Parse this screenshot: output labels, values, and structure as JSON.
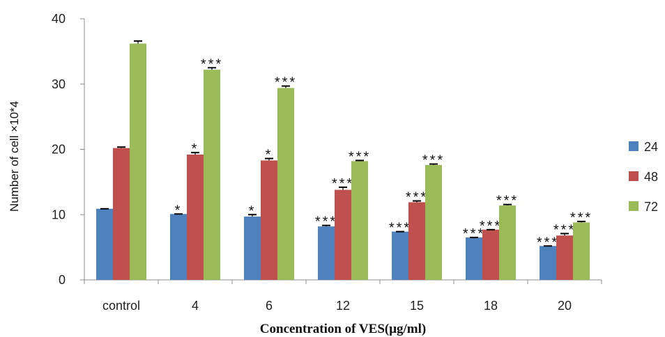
{
  "chart_data": {
    "type": "bar",
    "title": "",
    "xlabel": "Concentration of VES(μg/ml)",
    "ylabel": "Number of cell ×10*4",
    "ylim": [
      0,
      40
    ],
    "yticks": [
      "0",
      "10",
      "20",
      "30",
      "40"
    ],
    "grid": false,
    "legend_position": "right",
    "categories": [
      "control",
      "4",
      "6",
      "12",
      "15",
      "18",
      "20"
    ],
    "series": [
      {
        "name": "24",
        "color": "#4F81BD",
        "values": [
          10.9,
          10.1,
          9.7,
          8.2,
          7.4,
          6.5,
          5.2
        ],
        "errors": [
          0,
          0,
          0.3,
          0.15,
          0,
          0,
          0
        ],
        "significance": [
          "",
          "*",
          "*",
          "***",
          "***",
          "***",
          "***"
        ]
      },
      {
        "name": "48",
        "color": "#C0504D",
        "values": [
          20.2,
          19.2,
          18.3,
          13.8,
          11.9,
          7.7,
          6.8
        ],
        "errors": [
          0.15,
          0.3,
          0.3,
          0.4,
          0.2,
          0,
          0.3
        ],
        "significance": [
          "",
          "*",
          "*",
          "***",
          "***",
          "***",
          "***"
        ]
      },
      {
        "name": "72",
        "color": "#9BBB59",
        "values": [
          36.2,
          32.2,
          29.4,
          18.2,
          17.6,
          11.4,
          8.8
        ],
        "errors": [
          0.4,
          0.3,
          0.3,
          0.1,
          0.15,
          0.15,
          0.15
        ],
        "significance": [
          "",
          "***",
          "***",
          "***",
          "***",
          "***",
          "***"
        ]
      }
    ]
  }
}
